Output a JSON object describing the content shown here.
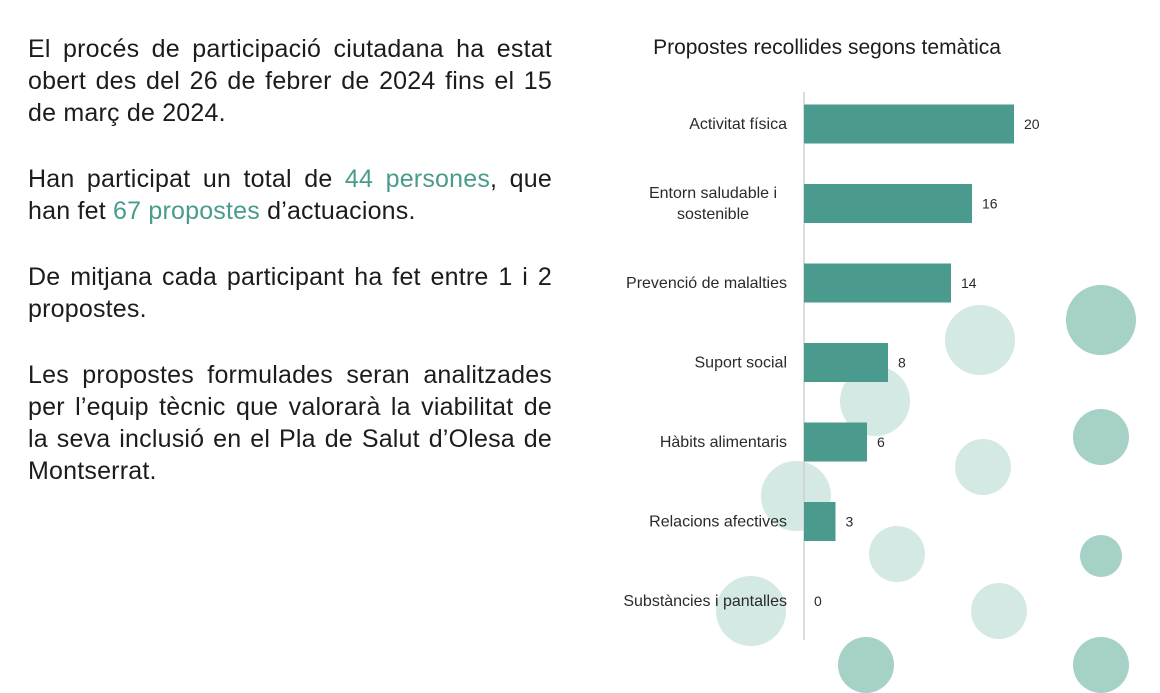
{
  "text": {
    "p1": "El procés de participació ciutadana ha estat obert des del 26 de febrer de 2024 fins el 15 de març de 2024.",
    "p2_a": "Han participat un total de ",
    "p2_highlight1": "44 persones",
    "p2_b": ", que han fet ",
    "p2_highlight2": "67 propostes",
    "p2_c": " d’actuacions.",
    "p3": "De mitjana cada participant ha fet entre 1 i 2 propostes.",
    "p4": "Les propostes formulades seran analitzades per l’equip tècnic que valorarà la viabilitat de la seva inclusió en el Pla de Salut d’Olesa de Montserrat."
  },
  "colors": {
    "bar": "#4a9a8e",
    "highlight": "#4a9a8e",
    "axis": "#d0d0d0",
    "circle_light": "#c9e3dd",
    "circle_mid": "#8ec6b9"
  },
  "chart_data": {
    "type": "bar",
    "orientation": "horizontal",
    "title": "Propostes recollides segons temàtica",
    "categories": [
      [
        "Activitat física"
      ],
      [
        "Entorn saludable i",
        "sostenible"
      ],
      [
        "Prevenció de malalties"
      ],
      [
        "Suport social"
      ],
      [
        "Hàbits alimentaris"
      ],
      [
        "Relacions afectives"
      ],
      [
        "Substàncies i pantalles"
      ]
    ],
    "values": [
      20,
      16,
      14,
      8,
      6,
      3,
      0
    ],
    "xlim": [
      0,
      20
    ],
    "grid": false,
    "data_labels": true
  }
}
